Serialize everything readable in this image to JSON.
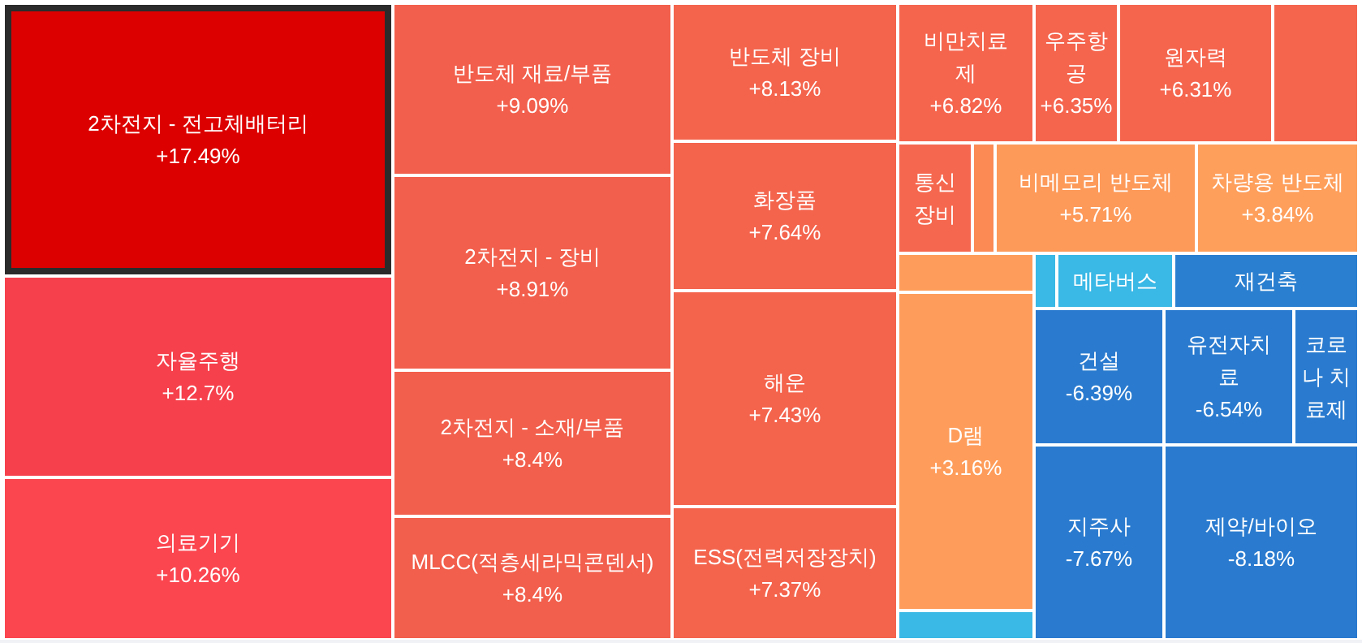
{
  "chart_data": {
    "type": "other",
    "categories": [
      "2차전지 - 전고체배터리",
      "자율주행",
      "의료기기",
      "반도체 재료/부품",
      "2차전지 - 장비",
      "2차전지 - 소재/부품",
      "MLCC(적층세라믹콘덴서)",
      "반도체 장비",
      "화장품",
      "해운",
      "ESS(전력저장장치)",
      "비만치료제",
      "우주항공",
      "원자력",
      null,
      "통신장비",
      null,
      "비메모리 반도체",
      "차량용 반도체",
      null,
      "D램",
      null,
      null,
      "메타버스",
      "재건축",
      "건설",
      "유전자치료",
      "코로나 치료제",
      "지주사",
      "제약/바이오"
    ],
    "values": [
      17.49,
      12.7,
      10.26,
      9.09,
      8.91,
      8.4,
      8.4,
      8.13,
      7.64,
      7.43,
      7.37,
      6.82,
      6.35,
      6.31,
      null,
      null,
      null,
      5.71,
      3.84,
      null,
      3.16,
      null,
      null,
      null,
      null,
      -6.39,
      -6.54,
      null,
      -7.67,
      -8.18
    ],
    "value_labels": [
      "+17.49%",
      "+12.7%",
      "+10.26%",
      "+9.09%",
      "+8.91%",
      "+8.4%",
      "+8.4%",
      "+8.13%",
      "+7.64%",
      "+7.43%",
      "+7.37%",
      "+6.82%",
      "+6.35%",
      "+6.31%",
      null,
      null,
      null,
      "+5.71%",
      "+3.84%",
      null,
      "+3.16%",
      null,
      null,
      null,
      null,
      "-6.39%",
      "-6.54%",
      null,
      "-7.67%",
      "-8.18%"
    ],
    "colors": [
      "#dd0000",
      "#f6404b",
      "#fb4650",
      "#f25f4c",
      "#f25f4c",
      "#f25f4c",
      "#f25f4c",
      "#f4644d",
      "#f4644d",
      "#f4644d",
      "#f4644d",
      "#f5654e",
      "#f5654e",
      "#f5654e",
      "#f5654e",
      "#f5684f",
      "#fb8a55",
      "#fd9a5a",
      "#fe9f5c",
      "#fe9d5b",
      "#fe9d5b",
      "#3ab8e6",
      "#3ab8e6",
      "#3ab8e6",
      "#2a7fd0",
      "#2a7bcf",
      "#2a7bcf",
      "#2a7bcf",
      "#2a7bcf",
      "#2a7bcf"
    ]
  }
}
